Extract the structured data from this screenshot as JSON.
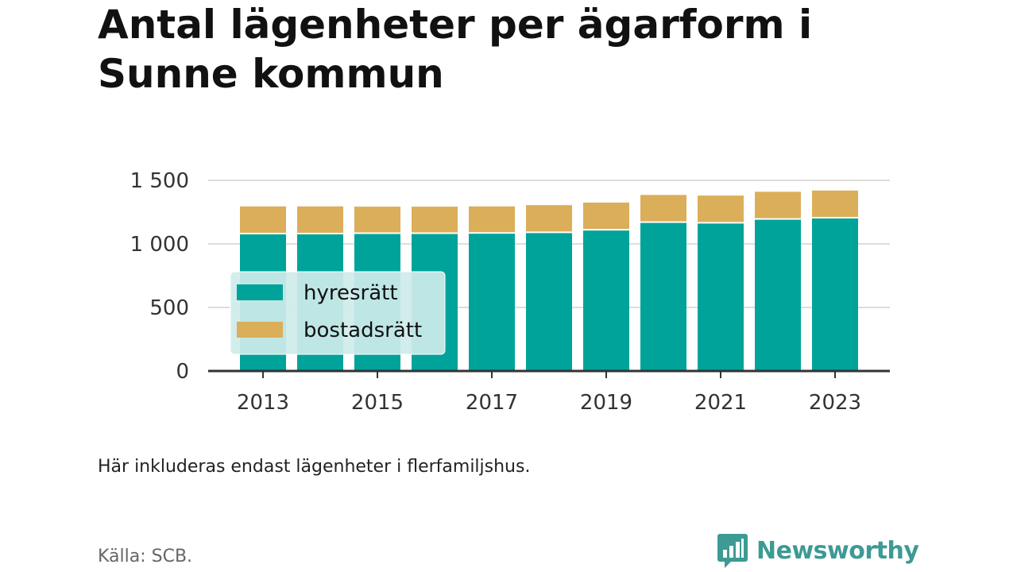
{
  "title": "Antal lägenheter per ägarform i Sunne kommun",
  "note": "Här inkluderas endast lägenheter i flerfamiljshus.",
  "source": "Källa: SCB.",
  "brand": {
    "name": "Newsworthy",
    "icon": "newsworthy-logo-icon",
    "color": "#3d9a94"
  },
  "chart_data": {
    "type": "bar",
    "stacked": true,
    "categories": [
      "2013",
      "2014",
      "2015",
      "2016",
      "2017",
      "2018",
      "2019",
      "2020",
      "2021",
      "2022",
      "2023"
    ],
    "x_tick_labels": [
      "2013",
      "2015",
      "2017",
      "2019",
      "2021",
      "2023"
    ],
    "series": [
      {
        "name": "hyresrätt",
        "color": "#00a39a",
        "values": [
          1075,
          1075,
          1078,
          1078,
          1080,
          1085,
          1105,
          1165,
          1160,
          1190,
          1200
        ]
      },
      {
        "name": "bostadsrätt",
        "color": "#dbae5a",
        "values": [
          220,
          220,
          215,
          215,
          215,
          220,
          220,
          220,
          220,
          220,
          220
        ]
      }
    ],
    "ylim": [
      0,
      1500
    ],
    "y_ticks": [
      0,
      500,
      1000,
      1500
    ],
    "y_tick_labels": [
      "0",
      "500",
      "1 000",
      "1 500"
    ],
    "grid": true,
    "legend": {
      "placement": "left-middle",
      "background": "#ceecea"
    }
  }
}
